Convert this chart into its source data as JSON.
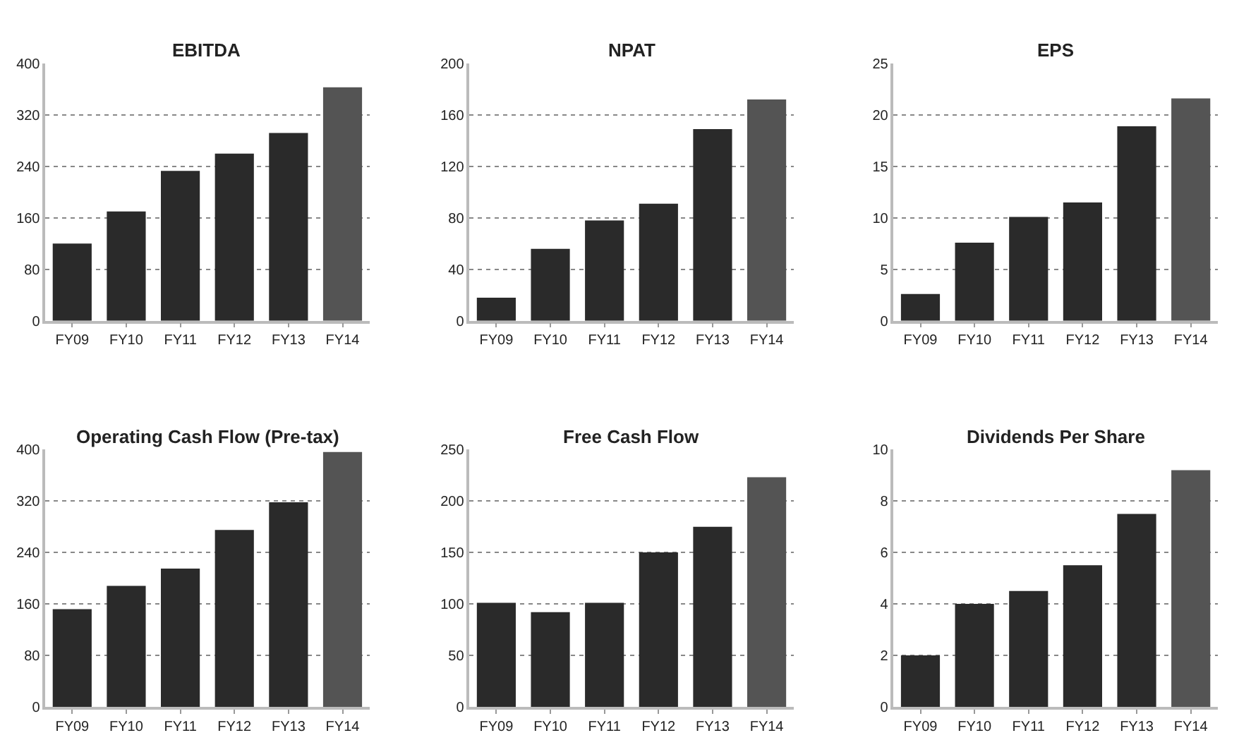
{
  "chart_data": [
    {
      "type": "bar",
      "title": "EBITDA",
      "categories": [
        "FY09",
        "FY10",
        "FY11",
        "FY12",
        "FY13",
        "FY14"
      ],
      "values": [
        120,
        170,
        233,
        260,
        292,
        363
      ],
      "colors": [
        "#2a2a2a",
        "#2a2a2a",
        "#2a2a2a",
        "#2a2a2a",
        "#2a2a2a",
        "#545454"
      ],
      "ylim": [
        0,
        400
      ],
      "yticks": [
        0,
        80,
        160,
        240,
        320,
        400
      ],
      "grid": "y"
    },
    {
      "type": "bar",
      "title": "NPAT",
      "categories": [
        "FY09",
        "FY10",
        "FY11",
        "FY12",
        "FY13",
        "FY14"
      ],
      "values": [
        18,
        56,
        78,
        91,
        149,
        172
      ],
      "colors": [
        "#2a2a2a",
        "#2a2a2a",
        "#2a2a2a",
        "#2a2a2a",
        "#2a2a2a",
        "#545454"
      ],
      "ylim": [
        0,
        200
      ],
      "yticks": [
        0,
        40,
        80,
        120,
        160,
        200
      ],
      "grid": "y"
    },
    {
      "type": "bar",
      "title": "EPS",
      "categories": [
        "FY09",
        "FY10",
        "FY11",
        "FY12",
        "FY13",
        "FY14"
      ],
      "values": [
        2.6,
        7.6,
        10.1,
        11.5,
        18.9,
        21.6
      ],
      "colors": [
        "#2a2a2a",
        "#2a2a2a",
        "#2a2a2a",
        "#2a2a2a",
        "#2a2a2a",
        "#545454"
      ],
      "ylim": [
        0,
        25
      ],
      "yticks": [
        0,
        5,
        10,
        15,
        20,
        25
      ],
      "grid": "y"
    },
    {
      "type": "bar",
      "title": "Operating Cash Flow (Pre-tax)",
      "categories": [
        "FY09",
        "FY10",
        "FY11",
        "FY12",
        "FY13",
        "FY14"
      ],
      "values": [
        152,
        188,
        215,
        275,
        318,
        396
      ],
      "colors": [
        "#2a2a2a",
        "#2a2a2a",
        "#2a2a2a",
        "#2a2a2a",
        "#2a2a2a",
        "#545454"
      ],
      "ylim": [
        0,
        400
      ],
      "yticks": [
        0,
        80,
        160,
        240,
        320,
        400
      ],
      "grid": "y"
    },
    {
      "type": "bar",
      "title": "Free Cash Flow",
      "categories": [
        "FY09",
        "FY10",
        "FY11",
        "FY12",
        "FY13",
        "FY14"
      ],
      "values": [
        101,
        92,
        101,
        150,
        175,
        223
      ],
      "colors": [
        "#2a2a2a",
        "#2a2a2a",
        "#2a2a2a",
        "#2a2a2a",
        "#2a2a2a",
        "#545454"
      ],
      "ylim": [
        0,
        250
      ],
      "yticks": [
        0,
        50,
        100,
        150,
        200,
        250
      ],
      "grid": "y"
    },
    {
      "type": "bar",
      "title": "Dividends Per Share",
      "categories": [
        "FY09",
        "FY10",
        "FY11",
        "FY12",
        "FY13",
        "FY14"
      ],
      "values": [
        2.0,
        4.0,
        4.5,
        5.5,
        7.5,
        9.2
      ],
      "colors": [
        "#2a2a2a",
        "#2a2a2a",
        "#2a2a2a",
        "#2a2a2a",
        "#2a2a2a",
        "#545454"
      ],
      "ylim": [
        0,
        10
      ],
      "yticks": [
        0,
        2,
        4,
        6,
        8,
        10
      ],
      "grid": "y"
    }
  ]
}
